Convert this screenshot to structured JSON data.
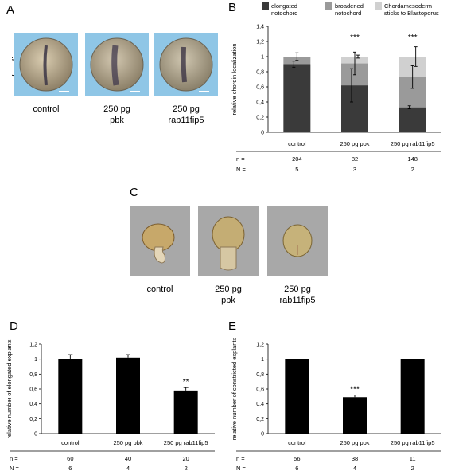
{
  "panels": {
    "A": {
      "letter": "A",
      "side_label": "chordin",
      "captions": [
        "control",
        "250 pg\npbk",
        "250 pg\nrab11fip5"
      ]
    },
    "C": {
      "letter": "C",
      "captions": [
        "control",
        "250 pg\npbk",
        "250 pg\nrab11fip5"
      ]
    }
  },
  "chart_data": [
    {
      "panel": "B",
      "type": "bar",
      "stacked": true,
      "ylabel": "relative chordin localization",
      "ylim": [
        0,
        1.4
      ],
      "yticks": [
        "0",
        "0,2",
        "0,4",
        "0,6",
        "0,8",
        "1",
        "1,2",
        "1,4"
      ],
      "categories": [
        "control",
        "250 pg pbk",
        "250 pg rab11fip5"
      ],
      "series": [
        {
          "name": "elongated\nnotochord",
          "color": "#3a3a3a",
          "values": [
            0.9,
            0.62,
            0.33
          ],
          "errors": [
            0.04,
            0.22,
            0.02
          ]
        },
        {
          "name": "broadened\nnotochord",
          "color": "#9a9a9a",
          "values": [
            0.1,
            0.29,
            0.4
          ],
          "errors": [
            0.05,
            0.15,
            0.15
          ]
        },
        {
          "name": "Chordamesoderm\nsticks to Blastoporus",
          "color": "#d0d0d0",
          "values": [
            0,
            0.09,
            0.27
          ],
          "errors": [
            0,
            0.02,
            0.13
          ]
        }
      ],
      "significance": [
        "",
        "***",
        "***"
      ],
      "n_label": "n =",
      "N_label": "N =",
      "n": [
        "204",
        "82",
        "148"
      ],
      "N": [
        "5",
        "3",
        "2"
      ]
    },
    {
      "panel": "D",
      "type": "bar",
      "ylabel": "relative number of elongated explants",
      "ylim": [
        0,
        1.2
      ],
      "yticks": [
        "0",
        "0,2",
        "0,4",
        "0,6",
        "0,8",
        "1",
        "1,2"
      ],
      "categories": [
        "control",
        "250 pg pbk",
        "250 pg rab11fip5"
      ],
      "values": [
        1.0,
        1.02,
        0.58
      ],
      "errors": [
        0.06,
        0.04,
        0.04
      ],
      "significance": [
        "",
        "",
        "**"
      ],
      "n_label": "n =",
      "N_label": "N =",
      "n": [
        "60",
        "40",
        "20"
      ],
      "N": [
        "6",
        "4",
        "2"
      ]
    },
    {
      "panel": "E",
      "type": "bar",
      "ylabel": "relative number of constricted explants",
      "ylim": [
        0,
        1.2
      ],
      "yticks": [
        "0",
        "0,2",
        "0,4",
        "0,6",
        "0,8",
        "1",
        "1,2"
      ],
      "categories": [
        "control",
        "250 pg pbk",
        "250 pg rab11fip5"
      ],
      "values": [
        1.0,
        0.49,
        1.0
      ],
      "errors": [
        0,
        0.03,
        0
      ],
      "significance": [
        "",
        "***",
        ""
      ],
      "n_label": "n =",
      "N_label": "N =",
      "n": [
        "56",
        "38",
        "11"
      ],
      "N": [
        "6",
        "4",
        "2"
      ]
    }
  ],
  "chart_letters": [
    "B",
    "D",
    "E"
  ]
}
